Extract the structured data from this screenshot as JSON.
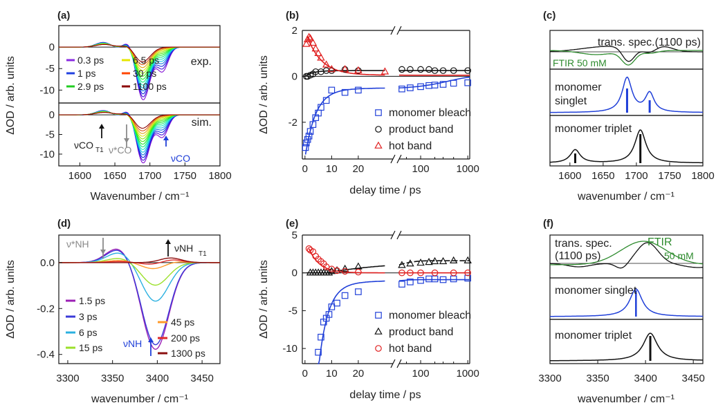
{
  "figure": {
    "colors": {
      "blue": "#1f3fd8",
      "red": "#e02020",
      "black": "#111111",
      "green": "#2e8b2e",
      "grey": "#8a8a8a"
    }
  },
  "chart_data": [
    {
      "panel": "(a)",
      "type": "line",
      "xlabel": "Wavenumber / cm⁻¹",
      "ylabel": "ΔOD / arb. units",
      "xlim": [
        1570,
        1800
      ],
      "ylim_exp": [
        -13,
        5
      ],
      "ylim_sim": [
        -13,
        3
      ],
      "xticks": [
        1600,
        1650,
        1700,
        1750,
        1800
      ],
      "yticks": [
        0,
        -5,
        -10
      ],
      "subpanels": [
        "exp.",
        "sim."
      ],
      "legend": [
        {
          "label": "0.3 ps",
          "color": "#8a2be2"
        },
        {
          "label": "6.5 ps",
          "color": "#e6e600"
        },
        {
          "label": "1 ps",
          "color": "#2040e0"
        },
        {
          "label": "30 ps",
          "color": "#ff4500"
        },
        {
          "label": "2.9 ps",
          "color": "#22cc22"
        },
        {
          "label": "1100 ps",
          "color": "#8b0000"
        }
      ],
      "annotations": [
        "νCO",
        "T1",
        "ν*CO",
        "νCO"
      ],
      "traces": [
        {
          "delay": "0.3 ps",
          "min": -12.0,
          "color": "#8a2be2"
        },
        {
          "delay": "1 ps",
          "min": -11.0,
          "color": "#2040e0"
        },
        {
          "delay": "2.9 ps",
          "min": -9.0,
          "color": "#22cc22"
        },
        {
          "delay": "6.5 ps",
          "min": -6.5,
          "color": "#e6e600"
        },
        {
          "delay": "30 ps",
          "min": -4.5,
          "color": "#ff4500"
        },
        {
          "delay": "1100 ps",
          "min": -3.5,
          "color": "#8b0000"
        }
      ]
    },
    {
      "panel": "(b)",
      "type": "scatter",
      "xlabel": "delay time / ps",
      "ylabel": "ΔOD / arb. units",
      "ylim": [
        -3.6,
        2
      ],
      "yticks": [
        2,
        0,
        -2
      ],
      "xticks_lin": [
        0,
        10,
        20
      ],
      "xticks_log": [
        "100",
        "1000"
      ],
      "legend": [
        "monomer bleach",
        "product band",
        "hot band"
      ],
      "series": [
        {
          "name": "monomer bleach",
          "marker": "square",
          "color": "#1f3fd8",
          "x": [
            0.2,
            0.5,
            1,
            1.5,
            2,
            3,
            4,
            5,
            6,
            8,
            10,
            15,
            20,
            40,
            60,
            100,
            150,
            200,
            300,
            500,
            1000
          ],
          "y": [
            -3.1,
            -2.9,
            -2.75,
            -2.6,
            -2.4,
            -2.1,
            -1.8,
            -1.6,
            -1.35,
            -1.05,
            -0.6,
            -0.7,
            -0.6,
            -0.55,
            -0.5,
            -0.45,
            -0.4,
            -0.38,
            -0.35,
            -0.3,
            -0.28
          ]
        },
        {
          "name": "product band",
          "marker": "circle",
          "color": "#111111",
          "x": [
            0.5,
            1,
            2,
            3,
            4,
            6,
            8,
            10,
            15,
            20,
            40,
            60,
            100,
            150,
            200,
            300,
            500,
            1000
          ],
          "y": [
            0.0,
            0.0,
            0.05,
            0.1,
            0.2,
            0.2,
            0.25,
            0.25,
            0.3,
            0.25,
            0.3,
            0.3,
            0.3,
            0.3,
            0.25,
            0.25,
            0.25,
            0.25
          ]
        },
        {
          "name": "hot band",
          "marker": "triangle",
          "color": "#e02020",
          "x": [
            0.5,
            1,
            1.5,
            2,
            3,
            4,
            5,
            6,
            8,
            10,
            15,
            20,
            30
          ],
          "y": [
            1.4,
            1.6,
            1.7,
            1.65,
            1.45,
            1.2,
            1.0,
            0.8,
            0.5,
            0.3,
            0.3,
            0.25,
            0.2
          ]
        }
      ]
    },
    {
      "panel": "(c)",
      "type": "line",
      "xlabel": "wavenumber / cm⁻¹",
      "xlim": [
        1570,
        1800
      ],
      "xticks": [
        1600,
        1650,
        1700,
        1750,
        1800
      ],
      "subpanels": [
        "trans. spec.(1100 ps)",
        "FTIR 50 mM",
        "monomer singlet",
        "monomer triplet"
      ],
      "sticks_singlet": [
        1686,
        1720
      ],
      "sticks_triplet": [
        1608,
        1706
      ]
    },
    {
      "panel": "(d)",
      "type": "line",
      "xlabel": "wavenumber / cm⁻¹",
      "ylabel": "ΔOD / arb. units",
      "xlim": [
        3290,
        3470
      ],
      "ylim": [
        -0.44,
        0.12
      ],
      "xticks": [
        3300,
        3350,
        3400,
        3450
      ],
      "yticks": [
        0.0,
        -0.2,
        -0.4
      ],
      "legend": [
        {
          "label": "1.5 ps",
          "color": "#9b1fb5"
        },
        {
          "label": "3 ps",
          "color": "#3a3ad8"
        },
        {
          "label": "6 ps",
          "color": "#2ab0e0"
        },
        {
          "label": "15 ps",
          "color": "#9be02a"
        },
        {
          "label": "45 ps",
          "color": "#ff9a2a"
        },
        {
          "label": "200 ps",
          "color": "#e02a2a"
        },
        {
          "label": "1300 ps",
          "color": "#8b1010"
        }
      ],
      "annotations": [
        "ν*NH",
        "νNH",
        "T1",
        "νNH"
      ],
      "traces": [
        {
          "delay": "1.5 ps",
          "min": -0.38,
          "pos": 0.065
        },
        {
          "delay": "3 ps",
          "min": -0.36,
          "pos": 0.06
        },
        {
          "delay": "6 ps",
          "min": -0.17,
          "pos": 0.045
        },
        {
          "delay": "15 ps",
          "min": -0.1,
          "pos": 0.02
        },
        {
          "delay": "45 ps",
          "min": -0.03,
          "pos": 0.01
        },
        {
          "delay": "200 ps",
          "min": -0.01,
          "pos": 0.005
        },
        {
          "delay": "1300 ps",
          "min": 0.0,
          "pos": 0.0
        }
      ]
    },
    {
      "panel": "(e)",
      "type": "scatter",
      "xlabel": "delay time / ps",
      "ylabel": "ΔOD / arb. units",
      "ylim": [
        -12,
        5
      ],
      "yticks": [
        5,
        0,
        -5,
        -10
      ],
      "xticks_lin": [
        0,
        10,
        20
      ],
      "xticks_log": [
        "100",
        "1000"
      ],
      "legend": [
        "monomer bleach",
        "product band",
        "hot band"
      ],
      "series": [
        {
          "name": "monomer bleach",
          "marker": "square",
          "color": "#1f3fd8",
          "x": [
            5,
            6,
            7,
            8,
            9,
            10,
            12,
            15,
            20,
            40,
            60,
            100,
            150,
            200,
            300,
            500,
            1000
          ],
          "y": [
            -10.5,
            -8.5,
            -6.5,
            -6.0,
            -5.5,
            -4.5,
            -4.0,
            -3.0,
            -2.5,
            -1.5,
            -1.2,
            -1.0,
            -0.8,
            -0.8,
            -0.9,
            -0.8,
            -0.7
          ]
        },
        {
          "name": "product band",
          "marker": "triangle",
          "color": "#111111",
          "x": [
            2,
            3,
            4,
            5,
            6,
            7,
            8,
            9,
            10,
            12,
            15,
            20,
            40,
            60,
            100,
            150,
            200,
            300,
            500,
            1000
          ],
          "y": [
            0,
            0,
            0,
            0,
            0,
            0,
            0,
            0,
            0.2,
            0.3,
            0.5,
            0.8,
            1.0,
            1.2,
            1.3,
            1.4,
            1.5,
            1.5,
            1.6,
            1.6
          ]
        },
        {
          "name": "hot band",
          "marker": "circle",
          "color": "#e02020",
          "x": [
            1.5,
            2,
            3,
            4,
            5,
            6,
            7,
            8,
            10,
            12,
            15,
            20,
            40,
            60,
            100,
            200,
            500,
            1000
          ],
          "y": [
            3.2,
            3.0,
            2.8,
            2.2,
            1.8,
            1.5,
            1.2,
            0.8,
            0.5,
            0.3,
            0.2,
            0.1,
            0.0,
            0.0,
            0.0,
            0.0,
            0.0,
            0.0
          ]
        }
      ]
    },
    {
      "panel": "(f)",
      "type": "line",
      "xlabel": "wavenumber / cm⁻¹",
      "xlim": [
        3300,
        3460
      ],
      "xticks": [
        3300,
        3350,
        3400,
        3450
      ],
      "subpanels": [
        "trans. spec.",
        "(1100 ps)",
        "FTIR",
        "50 mM",
        "monomer singlet",
        "monomer triplet"
      ],
      "sticks_singlet": [
        3390
      ],
      "sticks_triplet": [
        3405
      ]
    }
  ]
}
